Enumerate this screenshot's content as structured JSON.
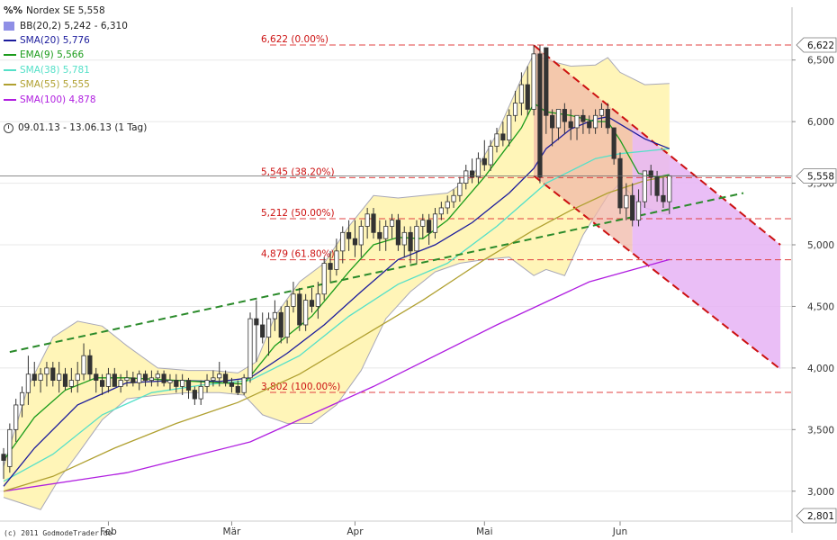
{
  "header": {
    "logo_text": "%%",
    "symbol_label": "Nordex SE 5,558",
    "period": "09.01.13 - 13.06.13 (1 Tag)"
  },
  "legend": [
    {
      "label": "BB(20,2) 5,242 - 6,310",
      "color": "#8f8fe6",
      "kind": "box"
    },
    {
      "label": "SMA(20) 5,776",
      "color": "#1c1c9c",
      "kind": "line"
    },
    {
      "label": "EMA(9) 5,566",
      "color": "#1c9c1c",
      "kind": "line"
    },
    {
      "label": "SMA(38) 5,781",
      "color": "#55e0c8",
      "kind": "line"
    },
    {
      "label": "SMA(55) 5,555",
      "color": "#b0a030",
      "kind": "line"
    },
    {
      "label": "SMA(100) 4,878",
      "color": "#b01ee0",
      "kind": "line"
    }
  ],
  "copyright": "(c) 2011 GodmodeTrader.de",
  "chart_data": {
    "type": "candlestick",
    "ylim": [
      2.8,
      6.72
    ],
    "y_ticks": [
      3.0,
      3.5,
      4.0,
      4.5,
      5.0,
      5.5,
      6.0,
      6.5
    ],
    "y_tick_labels": [
      "3,000",
      "3,500",
      "4,000",
      "4,500",
      "5,000",
      "5,500",
      "6,000",
      "6,500"
    ],
    "x_labels": [
      {
        "label": "Feb",
        "date": "2013-02-01"
      },
      {
        "label": "Mär",
        "date": "2013-03-01"
      },
      {
        "label": "Apr",
        "date": "2013-04-02"
      },
      {
        "label": "Mai",
        "date": "2013-05-02"
      },
      {
        "label": "Jun",
        "date": "2013-06-03"
      }
    ],
    "last_price": {
      "value": 5.558,
      "label": "5,558"
    },
    "price_flags": [
      {
        "value": 6.622,
        "label": "6,622"
      },
      {
        "value": 2.801,
        "label": "2,801"
      }
    ],
    "fibonacci": [
      {
        "value": 6.622,
        "label": "6,622 (0.00%)"
      },
      {
        "value": 5.545,
        "label": "5,545 (38.20%)"
      },
      {
        "value": 5.212,
        "label": "5,212 (50.00%)"
      },
      {
        "value": 4.879,
        "label": "4,879 (61.80%)"
      },
      {
        "value": 3.802,
        "label": "3,802 (100.00%)"
      }
    ],
    "colors": {
      "fib": "#e04040",
      "fib_text": "#cc1111",
      "bb_fill": "#fff5b8",
      "bb_line": "#a8a8b8",
      "sma20": "#1c1c9c",
      "ema9": "#1c9c1c",
      "sma38": "#55e0c8",
      "sma55": "#b0a030",
      "sma100": "#b01ee0",
      "channel_fill": "#e6b3f5",
      "channel_old_fill": "#f0b8a8",
      "channel_line": "#cc1111",
      "trend_line": "#2a8a2a",
      "candle": "#333333",
      "last_price_line": "#666666",
      "grid": "#e8e8e8"
    },
    "candles": {
      "dates": [
        "2013-01-09",
        "2013-01-10",
        "2013-01-11",
        "2013-01-14",
        "2013-01-15",
        "2013-01-16",
        "2013-01-17",
        "2013-01-18",
        "2013-01-21",
        "2013-01-22",
        "2013-01-23",
        "2013-01-24",
        "2013-01-25",
        "2013-01-28",
        "2013-01-29",
        "2013-01-30",
        "2013-01-31",
        "2013-02-01",
        "2013-02-04",
        "2013-02-05",
        "2013-02-06",
        "2013-02-07",
        "2013-02-08",
        "2013-02-11",
        "2013-02-12",
        "2013-02-13",
        "2013-02-14",
        "2013-02-15",
        "2013-02-18",
        "2013-02-19",
        "2013-02-20",
        "2013-02-21",
        "2013-02-22",
        "2013-02-25",
        "2013-02-26",
        "2013-02-27",
        "2013-02-28",
        "2013-03-01",
        "2013-03-04",
        "2013-03-05",
        "2013-03-06",
        "2013-03-07",
        "2013-03-08",
        "2013-03-11",
        "2013-03-12",
        "2013-03-13",
        "2013-03-14",
        "2013-03-15",
        "2013-03-18",
        "2013-03-19",
        "2013-03-20",
        "2013-03-21",
        "2013-03-22",
        "2013-03-25",
        "2013-03-26",
        "2013-03-27",
        "2013-03-28",
        "2013-04-02",
        "2013-04-03",
        "2013-04-04",
        "2013-04-05",
        "2013-04-08",
        "2013-04-09",
        "2013-04-10",
        "2013-04-11",
        "2013-04-12",
        "2013-04-15",
        "2013-04-16",
        "2013-04-17",
        "2013-04-18",
        "2013-04-19",
        "2013-04-22",
        "2013-04-23",
        "2013-04-24",
        "2013-04-25",
        "2013-04-26",
        "2013-04-29",
        "2013-04-30",
        "2013-05-02",
        "2013-05-03",
        "2013-05-06",
        "2013-05-07",
        "2013-05-08",
        "2013-05-09",
        "2013-05-10",
        "2013-05-13",
        "2013-05-14",
        "2013-05-15",
        "2013-05-16",
        "2013-05-17",
        "2013-05-20",
        "2013-05-21",
        "2013-05-22",
        "2013-05-23",
        "2013-05-24",
        "2013-05-27",
        "2013-05-28",
        "2013-05-29",
        "2013-05-30",
        "2013-05-31",
        "2013-06-03",
        "2013-06-04",
        "2013-06-05",
        "2013-06-06",
        "2013-06-07",
        "2013-06-10",
        "2013-06-11",
        "2013-06-12",
        "2013-06-13"
      ],
      "open": [
        3.3,
        3.2,
        3.5,
        3.7,
        3.8,
        3.95,
        3.9,
        3.95,
        4.0,
        3.9,
        3.95,
        3.85,
        3.9,
        3.95,
        4.1,
        3.95,
        3.9,
        3.85,
        3.95,
        3.85,
        3.9,
        3.92,
        3.88,
        3.95,
        3.9,
        3.92,
        3.95,
        3.88,
        3.9,
        3.85,
        3.9,
        3.82,
        3.75,
        3.85,
        3.9,
        3.92,
        3.95,
        3.88,
        3.85,
        3.8,
        3.92,
        4.4,
        4.35,
        4.25,
        4.4,
        4.45,
        4.25,
        4.5,
        4.6,
        4.35,
        4.55,
        4.5,
        4.6,
        4.85,
        4.8,
        4.95,
        5.1,
        5.05,
        5.0,
        5.15,
        5.25,
        5.1,
        5.05,
        5.15,
        5.2,
        5.0,
        5.1,
        4.95,
        5.15,
        5.2,
        5.1,
        5.25,
        5.3,
        5.35,
        5.4,
        5.5,
        5.6,
        5.55,
        5.7,
        5.65,
        5.8,
        5.9,
        5.85,
        6.05,
        6.15,
        6.3,
        6.1,
        6.55,
        6.6,
        6.05,
        5.95,
        6.1,
        6.0,
        5.95,
        6.05,
        6.0,
        5.95,
        6.05,
        6.1,
        5.95,
        5.7,
        5.3,
        5.4,
        5.2,
        5.35,
        5.6,
        5.55,
        5.4,
        5.35
      ],
      "high": [
        3.35,
        3.55,
        3.75,
        3.85,
        4.1,
        4.05,
        4.0,
        4.05,
        4.05,
        4.05,
        4.0,
        4.0,
        4.05,
        4.2,
        4.15,
        4.0,
        3.95,
        4.0,
        4.0,
        3.95,
        3.98,
        3.97,
        3.98,
        3.98,
        3.98,
        3.98,
        3.98,
        3.95,
        3.95,
        3.95,
        3.92,
        3.85,
        3.9,
        3.95,
        3.98,
        4.05,
        3.98,
        3.92,
        3.9,
        3.95,
        4.45,
        4.55,
        4.45,
        4.45,
        4.55,
        4.5,
        4.55,
        4.7,
        4.65,
        4.6,
        4.65,
        4.7,
        4.9,
        4.95,
        5.05,
        5.15,
        5.2,
        5.2,
        5.2,
        5.3,
        5.3,
        5.2,
        5.2,
        5.25,
        5.25,
        5.15,
        5.15,
        5.2,
        5.25,
        5.25,
        5.3,
        5.35,
        5.4,
        5.45,
        5.55,
        5.65,
        5.7,
        5.75,
        5.85,
        5.85,
        5.95,
        6.0,
        6.1,
        6.25,
        6.4,
        6.45,
        6.62,
        6.62,
        6.6,
        6.1,
        6.1,
        6.15,
        6.1,
        6.05,
        6.1,
        6.05,
        6.1,
        6.15,
        6.15,
        5.95,
        5.75,
        5.5,
        5.5,
        5.45,
        5.6,
        5.65,
        5.6,
        5.55,
        5.55
      ],
      "low": [
        3.1,
        3.15,
        3.4,
        3.6,
        3.7,
        3.85,
        3.8,
        3.85,
        3.85,
        3.8,
        3.82,
        3.8,
        3.8,
        3.9,
        3.9,
        3.8,
        3.78,
        3.8,
        3.85,
        3.8,
        3.85,
        3.85,
        3.82,
        3.85,
        3.85,
        3.85,
        3.85,
        3.82,
        3.8,
        3.78,
        3.75,
        3.7,
        3.7,
        3.8,
        3.85,
        3.85,
        3.85,
        3.8,
        3.78,
        3.78,
        3.88,
        4.05,
        4.2,
        4.1,
        4.3,
        4.2,
        4.2,
        4.45,
        4.3,
        4.3,
        4.45,
        4.4,
        4.55,
        4.7,
        4.75,
        4.85,
        4.95,
        4.9,
        4.9,
        5.05,
        5.05,
        4.95,
        4.95,
        5.05,
        4.95,
        4.9,
        4.85,
        4.85,
        5.05,
        5.0,
        5.05,
        5.2,
        5.25,
        5.3,
        5.35,
        5.45,
        5.5,
        5.5,
        5.6,
        5.6,
        5.75,
        5.8,
        5.8,
        6.0,
        6.05,
        6.05,
        6.05,
        5.5,
        5.9,
        5.8,
        5.85,
        5.9,
        5.85,
        5.85,
        5.9,
        5.9,
        5.9,
        5.95,
        5.9,
        5.65,
        5.25,
        5.2,
        5.15,
        5.15,
        5.3,
        5.4,
        5.35,
        5.3,
        5.25
      ],
      "close": [
        3.25,
        3.5,
        3.7,
        3.8,
        3.95,
        3.9,
        3.95,
        4.0,
        3.9,
        3.95,
        3.85,
        3.9,
        3.95,
        4.1,
        3.95,
        3.9,
        3.85,
        3.95,
        3.85,
        3.9,
        3.92,
        3.88,
        3.95,
        3.9,
        3.92,
        3.95,
        3.88,
        3.9,
        3.85,
        3.9,
        3.82,
        3.75,
        3.85,
        3.9,
        3.92,
        3.95,
        3.88,
        3.85,
        3.8,
        3.92,
        4.4,
        4.35,
        4.25,
        4.4,
        4.45,
        4.25,
        4.5,
        4.6,
        4.35,
        4.55,
        4.5,
        4.6,
        4.85,
        4.8,
        4.95,
        5.1,
        5.05,
        5.0,
        5.15,
        5.25,
        5.1,
        5.05,
        5.15,
        5.2,
        5.0,
        5.1,
        4.95,
        5.15,
        5.2,
        5.1,
        5.25,
        5.3,
        5.35,
        5.4,
        5.5,
        5.6,
        5.55,
        5.7,
        5.65,
        5.8,
        5.9,
        5.85,
        6.05,
        6.15,
        6.3,
        6.1,
        6.55,
        5.55,
        6.05,
        5.95,
        6.1,
        6.0,
        5.95,
        6.05,
        6.0,
        5.95,
        6.05,
        6.1,
        5.95,
        5.7,
        5.3,
        5.4,
        5.2,
        5.35,
        5.6,
        5.55,
        5.4,
        5.35,
        5.56
      ]
    },
    "sma20": [
      [
        0,
        3.04
      ],
      [
        5,
        3.35
      ],
      [
        12,
        3.7
      ],
      [
        20,
        3.88
      ],
      [
        28,
        3.9
      ],
      [
        35,
        3.89
      ],
      [
        40,
        3.92
      ],
      [
        46,
        4.12
      ],
      [
        52,
        4.35
      ],
      [
        58,
        4.62
      ],
      [
        64,
        4.88
      ],
      [
        70,
        5.0
      ],
      [
        76,
        5.18
      ],
      [
        82,
        5.42
      ],
      [
        86,
        5.62
      ],
      [
        88,
        5.78
      ],
      [
        92,
        5.94
      ],
      [
        96,
        6.02
      ],
      [
        98,
        6.04
      ],
      [
        100,
        5.98
      ],
      [
        104,
        5.86
      ],
      [
        108,
        5.78
      ]
    ],
    "ema9": [
      [
        0,
        3.25
      ],
      [
        5,
        3.6
      ],
      [
        10,
        3.82
      ],
      [
        15,
        3.92
      ],
      [
        20,
        3.92
      ],
      [
        28,
        3.9
      ],
      [
        35,
        3.88
      ],
      [
        39,
        3.87
      ],
      [
        44,
        4.18
      ],
      [
        50,
        4.42
      ],
      [
        56,
        4.78
      ],
      [
        60,
        5.0
      ],
      [
        64,
        5.06
      ],
      [
        68,
        5.05
      ],
      [
        72,
        5.2
      ],
      [
        78,
        5.55
      ],
      [
        84,
        5.95
      ],
      [
        86,
        6.15
      ],
      [
        88,
        6.08
      ],
      [
        92,
        6.05
      ],
      [
        96,
        6.0
      ],
      [
        98,
        6.0
      ],
      [
        100,
        5.85
      ],
      [
        103,
        5.58
      ],
      [
        106,
        5.55
      ],
      [
        108,
        5.57
      ]
    ],
    "sma38": [
      [
        0,
        3.08
      ],
      [
        8,
        3.3
      ],
      [
        16,
        3.62
      ],
      [
        24,
        3.8
      ],
      [
        32,
        3.86
      ],
      [
        40,
        3.9
      ],
      [
        48,
        4.1
      ],
      [
        56,
        4.42
      ],
      [
        64,
        4.68
      ],
      [
        72,
        4.85
      ],
      [
        80,
        5.15
      ],
      [
        88,
        5.5
      ],
      [
        96,
        5.7
      ],
      [
        100,
        5.74
      ],
      [
        104,
        5.76
      ],
      [
        108,
        5.78
      ]
    ],
    "sma55": [
      [
        0,
        3.0
      ],
      [
        8,
        3.12
      ],
      [
        18,
        3.35
      ],
      [
        28,
        3.55
      ],
      [
        38,
        3.72
      ],
      [
        48,
        3.95
      ],
      [
        58,
        4.25
      ],
      [
        68,
        4.55
      ],
      [
        78,
        4.88
      ],
      [
        86,
        5.12
      ],
      [
        92,
        5.28
      ],
      [
        98,
        5.42
      ],
      [
        104,
        5.52
      ],
      [
        108,
        5.56
      ]
    ],
    "sma100": [
      [
        0,
        3.0
      ],
      [
        20,
        3.15
      ],
      [
        40,
        3.4
      ],
      [
        60,
        3.85
      ],
      [
        80,
        4.35
      ],
      [
        95,
        4.7
      ],
      [
        108,
        4.88
      ]
    ],
    "bollinger_upper": [
      [
        0,
        3.2
      ],
      [
        4,
        3.85
      ],
      [
        8,
        4.25
      ],
      [
        12,
        4.38
      ],
      [
        16,
        4.34
      ],
      [
        20,
        4.18
      ],
      [
        25,
        4.0
      ],
      [
        30,
        3.98
      ],
      [
        34,
        3.98
      ],
      [
        38,
        3.96
      ],
      [
        41,
        4.05
      ],
      [
        44,
        4.42
      ],
      [
        48,
        4.7
      ],
      [
        52,
        4.85
      ],
      [
        56,
        5.15
      ],
      [
        60,
        5.4
      ],
      [
        64,
        5.38
      ],
      [
        68,
        5.4
      ],
      [
        72,
        5.42
      ],
      [
        76,
        5.55
      ],
      [
        80,
        5.9
      ],
      [
        84,
        6.35
      ],
      [
        86,
        6.55
      ],
      [
        88,
        6.5
      ],
      [
        92,
        6.45
      ],
      [
        96,
        6.46
      ],
      [
        98,
        6.52
      ],
      [
        100,
        6.4
      ],
      [
        104,
        6.3
      ],
      [
        108,
        6.31
      ]
    ],
    "bollinger_lower": [
      [
        0,
        2.95
      ],
      [
        3,
        2.9
      ],
      [
        6,
        2.85
      ],
      [
        9,
        3.1
      ],
      [
        12,
        3.3
      ],
      [
        16,
        3.58
      ],
      [
        20,
        3.75
      ],
      [
        25,
        3.78
      ],
      [
        30,
        3.8
      ],
      [
        35,
        3.8
      ],
      [
        39,
        3.78
      ],
      [
        42,
        3.62
      ],
      [
        46,
        3.55
      ],
      [
        50,
        3.55
      ],
      [
        54,
        3.7
      ],
      [
        58,
        3.98
      ],
      [
        62,
        4.4
      ],
      [
        66,
        4.62
      ],
      [
        70,
        4.78
      ],
      [
        74,
        4.85
      ],
      [
        78,
        4.88
      ],
      [
        82,
        4.9
      ],
      [
        86,
        4.75
      ],
      [
        88,
        4.8
      ],
      [
        91,
        4.75
      ],
      [
        94,
        5.08
      ],
      [
        98,
        5.4
      ],
      [
        100,
        5.5
      ],
      [
        104,
        5.3
      ],
      [
        108,
        5.24
      ]
    ],
    "trend_line": {
      "from": [
        1,
        4.13
      ],
      "to": [
        120,
        5.42
      ]
    },
    "channel": {
      "upper": {
        "from": [
          86,
          6.62
        ],
        "to": [
          126,
          5.0
        ]
      },
      "lower": {
        "from": [
          86,
          5.56
        ],
        "to": [
          126,
          3.99
        ]
      },
      "fill_from_index": 102
    }
  }
}
